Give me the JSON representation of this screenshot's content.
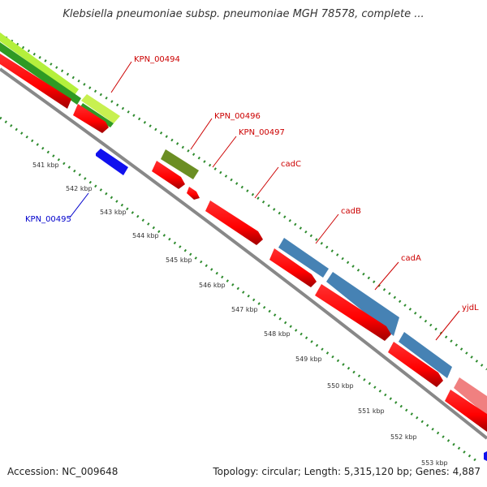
{
  "title": "Klebsiella pneumoniae subsp. pneumoniae MGH 78578, complete ...",
  "footer": {
    "accession": "Accession: NC_009648",
    "summary": "Topology: circular; Length: 5,315,120 bp; Genes: 4,887"
  },
  "scale_labels": [
    "541 kbp",
    "542 kbp",
    "543 kbp",
    "544 kbp",
    "545 kbp",
    "546 kbp",
    "547 kbp",
    "548 kbp",
    "549 kbp",
    "550 kbp",
    "551 kbp",
    "552 kbp",
    "553 kbp"
  ],
  "gene_labels": [
    "KPN_00494",
    "KPN_00496",
    "KPN_00497",
    "cadC",
    "cadB",
    "cadA",
    "yjdL",
    "KPN_00495"
  ],
  "colors": {
    "backbone": "#8c8c8c",
    "forward_gene": "#ff0000",
    "reverse_gene": "#1010ee",
    "light_green": "#b4f03c",
    "dark_green": "#2f9a24",
    "olive": "#6b8e23",
    "steel_blue": "#4682b4",
    "pink": "#f08080",
    "tick_dots": "#2e8b2e",
    "label_red": "#cc0000",
    "label_blue": "#0000cc"
  }
}
